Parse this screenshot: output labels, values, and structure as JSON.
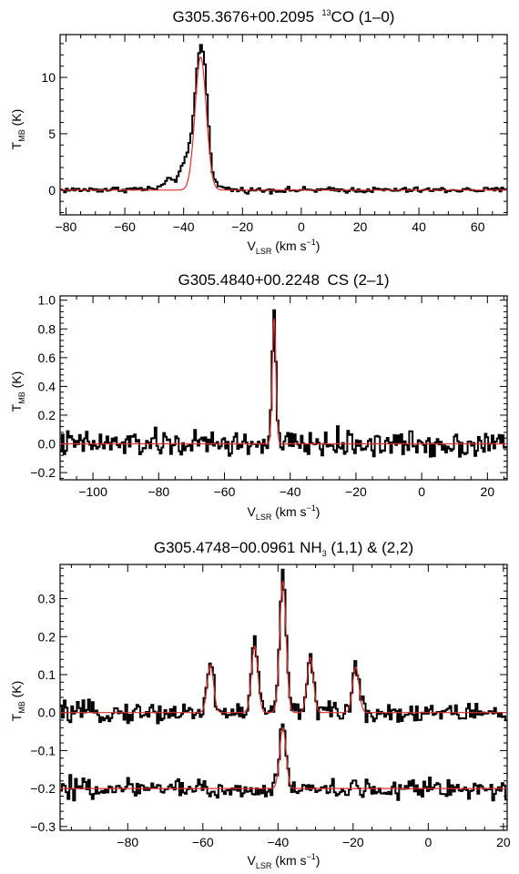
{
  "chart_data": [
    {
      "type": "line",
      "title": {
        "main": "G305.3676+00.2095",
        "species_sup": "13",
        "species": "CO (1–0)"
      },
      "xlabel": {
        "base": "V",
        "sub": "LSR",
        "unit": " (km s",
        "unit_sup": "−1",
        "close": ")"
      },
      "ylabel": {
        "base": "T",
        "sub": "MB",
        "unit": " (K)"
      },
      "xlim": [
        -82,
        70
      ],
      "ylim": [
        -2.2,
        13.8
      ],
      "xticks": [
        -80,
        -60,
        -40,
        -20,
        0,
        20,
        40,
        60
      ],
      "yticks": [
        0,
        5,
        10
      ],
      "x_tick_labels": [
        "−80",
        "−60",
        "−40",
        "−20",
        "0",
        "20",
        "40",
        "60"
      ],
      "y_tick_labels": [
        "0",
        "5",
        "10"
      ],
      "series": [
        {
          "role": "observed",
          "color": "#000000",
          "step": true,
          "noise": 0.12,
          "x": [
            -82,
            -50,
            -47,
            -45,
            -44,
            -43,
            -41,
            -39,
            -37,
            -36,
            -35,
            -34,
            -33,
            -32,
            -31,
            -30,
            -29,
            -27,
            -25,
            -22,
            70
          ],
          "y": [
            0,
            0.1,
            0.4,
            0.9,
            1.1,
            0.8,
            1.7,
            3.0,
            5.5,
            9.0,
            12.0,
            12.9,
            12.0,
            8.0,
            4.0,
            1.5,
            0.6,
            0.2,
            0.1,
            0,
            0
          ]
        },
        {
          "role": "fit",
          "color": "#e03030",
          "gaussians": [
            {
              "amp": 11.8,
              "center": -34.2,
              "sigma": 1.9
            }
          ]
        }
      ]
    },
    {
      "type": "line",
      "title": {
        "main": "G305.4840+00.2248",
        "species": "CS (2–1)"
      },
      "xlabel": {
        "base": "V",
        "sub": "LSR",
        "unit": " (km s",
        "unit_sup": "−1",
        "close": ")"
      },
      "ylabel": {
        "base": "T",
        "sub": "MB",
        "unit": " (K)"
      },
      "xlim": [
        -110,
        26
      ],
      "ylim": [
        -0.25,
        1.03
      ],
      "xticks": [
        -100,
        -80,
        -60,
        -40,
        -20,
        0,
        20
      ],
      "yticks": [
        -0.2,
        0.0,
        0.2,
        0.4,
        0.6,
        0.8,
        1.0
      ],
      "x_tick_labels": [
        "−100",
        "−80",
        "−60",
        "−40",
        "−20",
        "0",
        "20"
      ],
      "y_tick_labels": [
        "−0.2",
        "0.0",
        "0.2",
        "0.4",
        "0.6",
        "0.8",
        "1.0"
      ],
      "series": [
        {
          "role": "observed",
          "color": "#000000",
          "step": true,
          "noise": 0.045,
          "x": [
            -110,
            -47,
            -46.2,
            -45.6,
            -45.1,
            -44.6,
            -44.1,
            -43.5,
            -42.8,
            26
          ],
          "y": [
            0,
            0,
            0.05,
            0.45,
            0.92,
            0.75,
            0.3,
            0.05,
            0,
            0
          ]
        },
        {
          "role": "fit",
          "color": "#e03030",
          "gaussians": [
            {
              "amp": 0.87,
              "center": -44.9,
              "sigma": 0.55
            }
          ]
        }
      ]
    },
    {
      "type": "line",
      "title": {
        "main": "G305.4748−00.0961 NH",
        "species_sub": "3",
        "species": " (1,1) & (2,2)"
      },
      "xlabel": {
        "base": "V",
        "sub": "LSR",
        "unit": " (km s",
        "unit_sup": "−1",
        "close": ")"
      },
      "ylabel": {
        "base": "T",
        "sub": "MB",
        "unit": " (K)"
      },
      "xlim": [
        -98,
        21
      ],
      "ylim": [
        -0.31,
        0.39
      ],
      "xticks": [
        -80,
        -60,
        -40,
        -20,
        0,
        20
      ],
      "yticks": [
        -0.3,
        -0.2,
        -0.1,
        0.0,
        0.1,
        0.2,
        0.3
      ],
      "x_tick_labels": [
        "−80",
        "−60",
        "−40",
        "−20",
        "0",
        "20"
      ],
      "y_tick_labels": [
        "−0.3",
        "−0.2",
        "−0.1",
        "0.0",
        "0.1",
        "0.2",
        "0.3"
      ],
      "series": [
        {
          "name": "(1,1)",
          "role": "observed",
          "color": "#000000",
          "step": true,
          "noise": 0.013,
          "baseline": 0.0,
          "gaussians": [
            {
              "amp": 0.13,
              "center": -58.0,
              "sigma": 0.9
            },
            {
              "amp": 0.185,
              "center": -46.2,
              "sigma": 0.9
            },
            {
              "amp": 0.355,
              "center": -38.7,
              "sigma": 0.9
            },
            {
              "amp": 0.15,
              "center": -31.4,
              "sigma": 0.9
            },
            {
              "amp": 0.125,
              "center": -19.3,
              "sigma": 0.9
            }
          ]
        },
        {
          "name": "(1,1) fit",
          "role": "fit",
          "color": "#e03030",
          "baseline": 0.0,
          "gaussians": [
            {
              "amp": 0.125,
              "center": -58.0,
              "sigma": 0.85
            },
            {
              "amp": 0.175,
              "center": -46.2,
              "sigma": 0.85
            },
            {
              "amp": 0.345,
              "center": -38.7,
              "sigma": 0.85
            },
            {
              "amp": 0.145,
              "center": -31.4,
              "sigma": 0.85
            },
            {
              "amp": 0.12,
              "center": -19.3,
              "sigma": 0.85
            }
          ]
        },
        {
          "name": "(2,2)",
          "role": "observed",
          "color": "#000000",
          "step": true,
          "noise": 0.013,
          "baseline": -0.2,
          "gaussians": [
            {
              "amp": 0.165,
              "center": -38.7,
              "sigma": 0.9
            }
          ]
        },
        {
          "name": "(2,2) fit",
          "role": "fit",
          "color": "#e03030",
          "baseline": -0.2,
          "gaussians": [
            {
              "amp": 0.16,
              "center": -38.7,
              "sigma": 0.85
            }
          ]
        }
      ]
    }
  ]
}
